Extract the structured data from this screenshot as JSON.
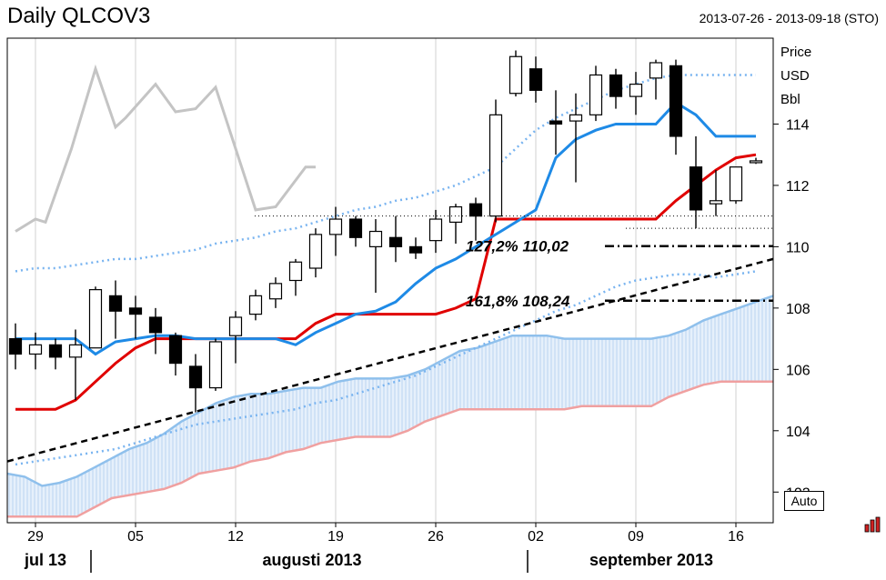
{
  "header": {
    "title": "Daily QLCOV3",
    "date_range": "2013-07-26 - 2013-09-18 (STO)"
  },
  "controls": {
    "auto_label": "Auto"
  },
  "chart_data": {
    "type": "candlestick",
    "unit_lines": [
      "Price",
      "USD",
      "Bbl"
    ],
    "ylim": [
      101.0,
      116.8
    ],
    "y_ticks": [
      102,
      104,
      106,
      108,
      110,
      112,
      114
    ],
    "x_tick_labels": [
      "29",
      "05",
      "12",
      "19",
      "26",
      "02",
      "09",
      "16"
    ],
    "month_labels": [
      "jul 13",
      "augusti 2013",
      "september 2013"
    ],
    "annotations": [
      "127,2% 110,02",
      "161,8% 108,24"
    ],
    "colors": {
      "conversion": "#e00000",
      "base": "#1e8ae6",
      "lagging": "#c4c4c4",
      "leading_span": "#8fc0ec",
      "leading_span_b": "#f0a0a0",
      "cloud": "#b9d3f0",
      "lead_line": "#79b4f0"
    },
    "candles": [
      {
        "date": "2013-07-26",
        "open": 107.0,
        "high": 107.5,
        "low": 106.0,
        "close": 106.5
      },
      {
        "date": "2013-07-29",
        "open": 106.5,
        "high": 107.2,
        "low": 106.0,
        "close": 106.8
      },
      {
        "date": "2013-07-30",
        "open": 106.8,
        "high": 107.0,
        "low": 106.0,
        "close": 106.4
      },
      {
        "date": "2013-07-31",
        "open": 106.4,
        "high": 107.3,
        "low": 105.0,
        "close": 106.8
      },
      {
        "date": "2013-08-01",
        "open": 106.7,
        "high": 108.7,
        "low": 106.7,
        "close": 108.6
      },
      {
        "date": "2013-08-02",
        "open": 108.4,
        "high": 108.9,
        "low": 107.0,
        "close": 107.9
      },
      {
        "date": "2013-08-05",
        "open": 108.0,
        "high": 108.4,
        "low": 107.0,
        "close": 107.8
      },
      {
        "date": "2013-08-06",
        "open": 107.7,
        "high": 108.0,
        "low": 106.5,
        "close": 107.2
      },
      {
        "date": "2013-08-07",
        "open": 107.1,
        "high": 107.2,
        "low": 105.8,
        "close": 106.2
      },
      {
        "date": "2013-08-08",
        "open": 106.1,
        "high": 106.5,
        "low": 104.6,
        "close": 105.4
      },
      {
        "date": "2013-08-09",
        "open": 105.4,
        "high": 107.0,
        "low": 105.3,
        "close": 106.9
      },
      {
        "date": "2013-08-12",
        "open": 107.1,
        "high": 107.9,
        "low": 106.2,
        "close": 107.7
      },
      {
        "date": "2013-08-13",
        "open": 107.8,
        "high": 108.6,
        "low": 107.6,
        "close": 108.4
      },
      {
        "date": "2013-08-14",
        "open": 108.3,
        "high": 109.0,
        "low": 108.0,
        "close": 108.8
      },
      {
        "date": "2013-08-15",
        "open": 108.9,
        "high": 109.6,
        "low": 108.4,
        "close": 109.5
      },
      {
        "date": "2013-08-16",
        "open": 109.3,
        "high": 110.6,
        "low": 109.0,
        "close": 110.4
      },
      {
        "date": "2013-08-19",
        "open": 110.4,
        "high": 111.3,
        "low": 109.7,
        "close": 110.9
      },
      {
        "date": "2013-08-20",
        "open": 110.9,
        "high": 111.0,
        "low": 110.0,
        "close": 110.3
      },
      {
        "date": "2013-08-21",
        "open": 110.0,
        "high": 110.9,
        "low": 108.5,
        "close": 110.5
      },
      {
        "date": "2013-08-22",
        "open": 110.3,
        "high": 111.0,
        "low": 109.5,
        "close": 110.0
      },
      {
        "date": "2013-08-23",
        "open": 110.0,
        "high": 110.3,
        "low": 109.6,
        "close": 109.8
      },
      {
        "date": "2013-08-26",
        "open": 110.2,
        "high": 111.2,
        "low": 109.8,
        "close": 110.9
      },
      {
        "date": "2013-08-27",
        "open": 110.8,
        "high": 111.4,
        "low": 110.1,
        "close": 111.3
      },
      {
        "date": "2013-08-28",
        "open": 111.4,
        "high": 111.6,
        "low": 110.2,
        "close": 111.0
      },
      {
        "date": "2013-08-29",
        "open": 111.0,
        "high": 114.8,
        "low": 110.8,
        "close": 114.3
      },
      {
        "date": "2013-08-30",
        "open": 115.0,
        "high": 116.4,
        "low": 114.9,
        "close": 116.2
      },
      {
        "date": "2013-09-02",
        "open": 115.8,
        "high": 116.2,
        "low": 114.7,
        "close": 115.1
      },
      {
        "date": "2013-09-03",
        "open": 114.1,
        "high": 115.1,
        "low": 113.0,
        "close": 114.0
      },
      {
        "date": "2013-09-04",
        "open": 114.1,
        "high": 115.0,
        "low": 112.1,
        "close": 114.3
      },
      {
        "date": "2013-09-05",
        "open": 114.3,
        "high": 115.9,
        "low": 114.1,
        "close": 115.6
      },
      {
        "date": "2013-09-06",
        "open": 115.6,
        "high": 115.8,
        "low": 114.5,
        "close": 114.9
      },
      {
        "date": "2013-09-09",
        "open": 114.9,
        "high": 115.7,
        "low": 114.3,
        "close": 115.3
      },
      {
        "date": "2013-09-10",
        "open": 115.5,
        "high": 116.1,
        "low": 114.8,
        "close": 116.0
      },
      {
        "date": "2013-09-11",
        "open": 115.9,
        "high": 116.1,
        "low": 113.0,
        "close": 113.6
      },
      {
        "date": "2013-09-12",
        "open": 112.6,
        "high": 113.6,
        "low": 110.6,
        "close": 111.2
      },
      {
        "date": "2013-09-13",
        "open": 111.4,
        "high": 112.5,
        "low": 111.0,
        "close": 111.5
      },
      {
        "date": "2013-09-16",
        "open": 111.5,
        "high": 112.6,
        "low": 111.4,
        "close": 112.6
      },
      {
        "date": "2013-09-17",
        "open": 112.8,
        "high": 112.9,
        "low": 112.7,
        "close": 112.8
      }
    ],
    "conversion_line": [
      104.7,
      104.7,
      104.7,
      105.0,
      105.6,
      106.2,
      106.7,
      107.0,
      107.0,
      107.0,
      107.0,
      107.0,
      107.0,
      107.0,
      107.0,
      107.5,
      107.8,
      107.8,
      107.8,
      107.8,
      107.8,
      107.8,
      108.0,
      108.3,
      110.9,
      110.9,
      110.9,
      110.9,
      110.9,
      110.9,
      110.9,
      110.9,
      110.9,
      111.5,
      112.0,
      112.5,
      112.9,
      113.0
    ],
    "base_line": [
      107.0,
      107.0,
      107.0,
      107.0,
      106.5,
      106.9,
      107.0,
      107.1,
      107.1,
      107.0,
      107.0,
      107.0,
      107.0,
      107.0,
      106.8,
      107.2,
      107.5,
      107.8,
      107.9,
      108.2,
      108.8,
      109.3,
      109.6,
      110.0,
      110.4,
      110.8,
      111.2,
      112.9,
      113.5,
      113.8,
      114.0,
      114.0,
      114.0,
      114.7,
      114.3,
      113.6,
      113.6,
      113.6
    ],
    "lagging_line": [
      {
        "x": 0,
        "v": 110.5
      },
      {
        "x": 1,
        "v": 110.9
      },
      {
        "x": 1.5,
        "v": 110.8
      },
      {
        "x": 2.8,
        "v": 113.2
      },
      {
        "x": 4,
        "v": 115.8
      },
      {
        "x": 5,
        "v": 113.9
      },
      {
        "x": 5.5,
        "v": 114.2
      },
      {
        "x": 7,
        "v": 115.3
      },
      {
        "x": 8,
        "v": 114.4
      },
      {
        "x": 9,
        "v": 114.5
      },
      {
        "x": 10,
        "v": 115.2
      },
      {
        "x": 12,
        "v": 111.2
      },
      {
        "x": 13,
        "v": 111.3
      },
      {
        "x": 14.5,
        "v": 112.6
      },
      {
        "x": 15,
        "v": 112.6
      }
    ]
  }
}
